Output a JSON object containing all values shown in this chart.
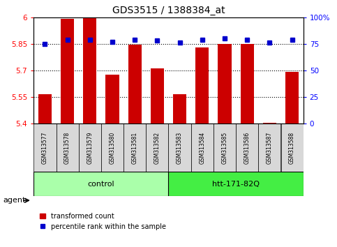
{
  "title": "GDS3515 / 1388384_at",
  "samples": [
    "GSM313577",
    "GSM313578",
    "GSM313579",
    "GSM313580",
    "GSM313581",
    "GSM313582",
    "GSM313583",
    "GSM313584",
    "GSM313585",
    "GSM313586",
    "GSM313587",
    "GSM313588"
  ],
  "bar_values": [
    5.565,
    5.99,
    6.0,
    5.675,
    5.845,
    5.71,
    5.565,
    5.83,
    5.85,
    5.85,
    5.405,
    5.69
  ],
  "percentile_values": [
    75,
    79,
    79,
    77,
    79,
    78,
    76,
    79,
    80,
    79,
    76,
    79
  ],
  "groups": [
    {
      "label": "control",
      "start": 0,
      "end": 6,
      "color": "#aaffaa"
    },
    {
      "label": "htt-171-82Q",
      "start": 6,
      "end": 12,
      "color": "#44ee44"
    }
  ],
  "ylim_left": [
    5.4,
    6.0
  ],
  "ylim_right": [
    0,
    100
  ],
  "yticks_left": [
    5.4,
    5.55,
    5.7,
    5.85,
    6.0
  ],
  "ytick_labels_left": [
    "5.4",
    "5.55",
    "5.7",
    "5.85",
    "6"
  ],
  "yticks_right": [
    0,
    25,
    50,
    75,
    100
  ],
  "ytick_labels_right": [
    "0",
    "25",
    "50",
    "75",
    "100%"
  ],
  "hlines": [
    5.55,
    5.7,
    5.85
  ],
  "bar_color": "#cc0000",
  "percentile_color": "#0000cc",
  "bar_width": 0.6,
  "agent_label": "agent",
  "sample_box_color": "#d8d8d8",
  "background_color": "#ffffff",
  "legend_red_label": "transformed count",
  "legend_blue_label": "percentile rank within the sample"
}
